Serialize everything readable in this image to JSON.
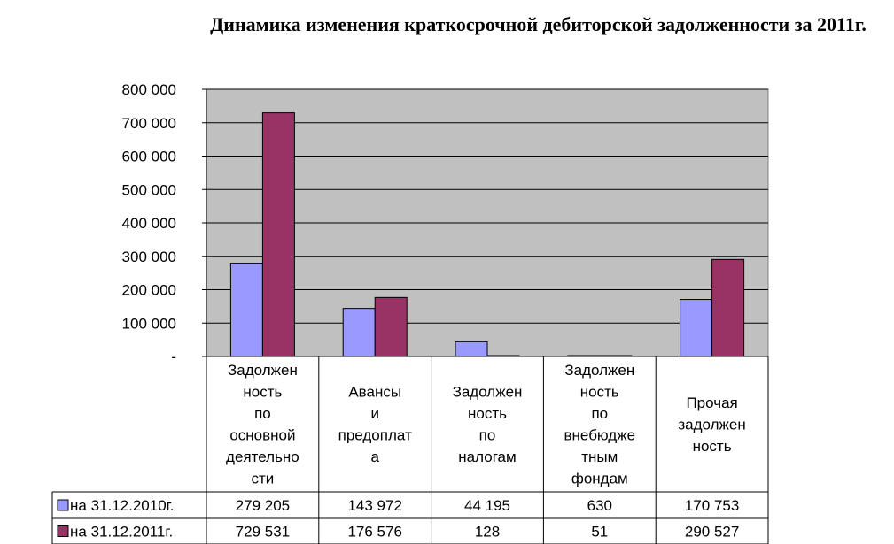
{
  "chart_data": {
    "type": "bar",
    "title": "Динамика изменения краткосрочной дебиторской задолженности за 2011г.",
    "categories": [
      "Задолжен ность по основной деятельно сти",
      "Авансы и предоплат а",
      "Задолжен ность по налогам",
      "Задолжен ность по внебюдже тным фондам",
      "Прочая задолжен ность"
    ],
    "category_lines": [
      [
        "Задолжен",
        "ность",
        "по",
        "основной",
        "деятельно",
        "сти"
      ],
      [
        "Авансы",
        "и",
        "предоплат",
        "а"
      ],
      [
        "Задолжен",
        "ность",
        "по",
        "налогам"
      ],
      [
        "Задолжен",
        "ность",
        "по",
        "внебюдже",
        "тным",
        "фондам"
      ],
      [
        "Прочая",
        "задолжен",
        "ность"
      ]
    ],
    "series": [
      {
        "name": "на 31.12.2010г.",
        "color": "#9999ff",
        "values": [
          279205,
          143972,
          44195,
          630,
          170753
        ],
        "labels": [
          "279 205",
          "143 972",
          "44 195",
          "630",
          "170 753"
        ]
      },
      {
        "name": "на 31.12.2011г.",
        "color": "#993366",
        "values": [
          729531,
          176576,
          128,
          51,
          290527
        ],
        "labels": [
          "729 531",
          "176 576",
          "128",
          "51",
          "290 527"
        ]
      }
    ],
    "ylim": [
      0,
      800000
    ],
    "yticks": [
      0,
      100000,
      200000,
      300000,
      400000,
      500000,
      600000,
      700000,
      800000
    ],
    "ytick_labels": [
      "-",
      "100 000",
      "200 000",
      "300 000",
      "400 000",
      "500 000",
      "600 000",
      "700 000",
      "800 000"
    ],
    "xlabel": "",
    "ylabel": "",
    "grid": true,
    "plot_background": "#c0c0c0",
    "legend": "data-table"
  }
}
